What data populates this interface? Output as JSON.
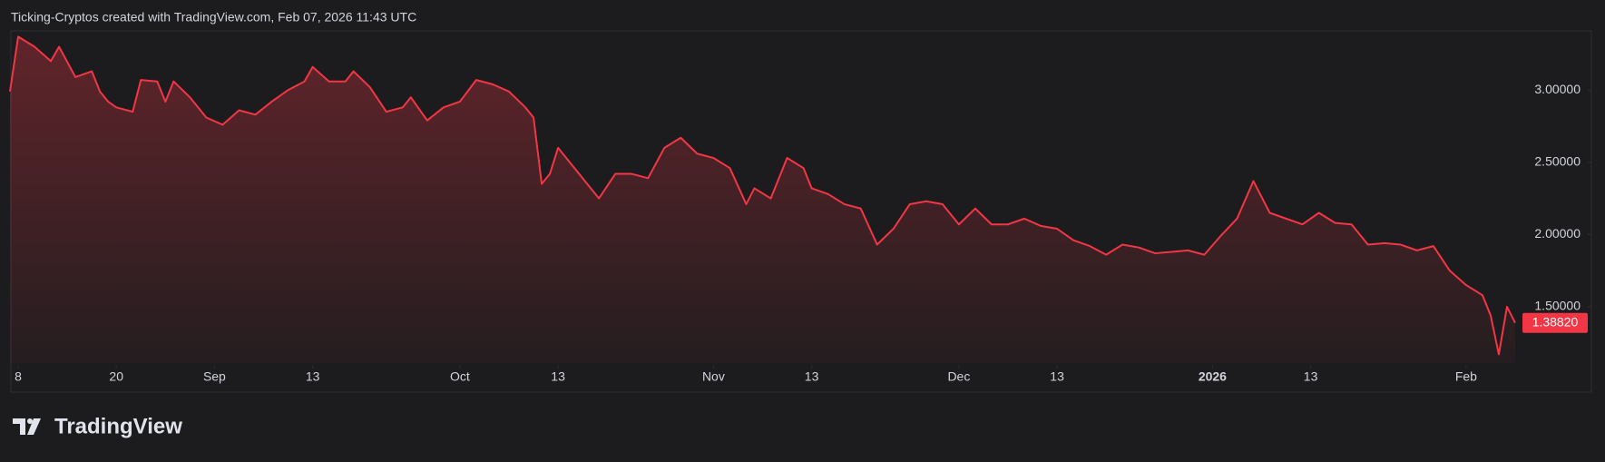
{
  "chart_data": {
    "type": "area",
    "title": "Ticking-Cryptos created with TradingView.com, Feb 07, 2026 11:43 UTC",
    "brand": "TradingView",
    "color": "#f23645",
    "x": [
      "2025-08-07",
      "2025-08-08",
      "2025-08-10",
      "2025-08-12",
      "2025-08-13",
      "2025-08-15",
      "2025-08-17",
      "2025-08-18",
      "2025-08-19",
      "2025-08-20",
      "2025-08-22",
      "2025-08-23",
      "2025-08-25",
      "2025-08-26",
      "2025-08-27",
      "2025-08-29",
      "2025-08-31",
      "2025-09-02",
      "2025-09-04",
      "2025-09-06",
      "2025-09-08",
      "2025-09-10",
      "2025-09-12",
      "2025-09-13",
      "2025-09-15",
      "2025-09-17",
      "2025-09-18",
      "2025-09-20",
      "2025-09-22",
      "2025-09-24",
      "2025-09-25",
      "2025-09-27",
      "2025-09-29",
      "2025-10-01",
      "2025-10-03",
      "2025-10-05",
      "2025-10-07",
      "2025-10-09",
      "2025-10-10",
      "2025-10-11",
      "2025-10-12",
      "2025-10-13",
      "2025-10-15",
      "2025-10-17",
      "2025-10-18",
      "2025-10-20",
      "2025-10-22",
      "2025-10-24",
      "2025-10-26",
      "2025-10-28",
      "2025-10-30",
      "2025-11-01",
      "2025-11-03",
      "2025-11-05",
      "2025-11-06",
      "2025-11-08",
      "2025-11-10",
      "2025-11-12",
      "2025-11-13",
      "2025-11-15",
      "2025-11-17",
      "2025-11-19",
      "2025-11-21",
      "2025-11-23",
      "2025-11-25",
      "2025-11-27",
      "2025-11-29",
      "2025-12-01",
      "2025-12-03",
      "2025-12-05",
      "2025-12-07",
      "2025-12-09",
      "2025-12-11",
      "2025-12-13",
      "2025-12-15",
      "2025-12-17",
      "2025-12-19",
      "2025-12-21",
      "2025-12-23",
      "2025-12-25",
      "2025-12-27",
      "2025-12-29",
      "2025-12-31",
      "2026-01-02",
      "2026-01-04",
      "2026-01-06",
      "2026-01-08",
      "2026-01-10",
      "2026-01-12",
      "2026-01-14",
      "2026-01-16",
      "2026-01-18",
      "2026-01-20",
      "2026-01-22",
      "2026-01-24",
      "2026-01-26",
      "2026-01-28",
      "2026-01-30",
      "2026-02-01",
      "2026-02-03",
      "2026-02-04",
      "2026-02-05",
      "2026-02-06",
      "2026-02-07"
    ],
    "values": [
      2.99,
      3.37,
      3.3,
      3.2,
      3.3,
      3.09,
      3.13,
      2.99,
      2.92,
      2.88,
      2.85,
      3.07,
      3.06,
      2.92,
      3.06,
      2.95,
      2.81,
      2.76,
      2.86,
      2.83,
      2.92,
      3.0,
      3.06,
      3.16,
      3.06,
      3.06,
      3.13,
      3.02,
      2.85,
      2.88,
      2.95,
      2.79,
      2.88,
      2.92,
      3.07,
      3.04,
      2.99,
      2.88,
      2.81,
      2.35,
      2.42,
      2.6,
      2.46,
      2.32,
      2.25,
      2.42,
      2.42,
      2.39,
      2.6,
      2.67,
      2.56,
      2.53,
      2.46,
      2.21,
      2.32,
      2.25,
      2.53,
      2.46,
      2.32,
      2.28,
      2.21,
      2.18,
      1.93,
      2.04,
      2.21,
      2.23,
      2.21,
      2.07,
      2.18,
      2.07,
      2.07,
      2.11,
      2.06,
      2.04,
      1.96,
      1.92,
      1.86,
      1.93,
      1.91,
      1.87,
      1.88,
      1.89,
      1.86,
      1.99,
      2.11,
      2.37,
      2.15,
      2.11,
      2.07,
      2.15,
      2.08,
      2.07,
      1.93,
      1.94,
      1.93,
      1.89,
      1.92,
      1.75,
      1.65,
      1.58,
      1.44,
      1.17,
      1.5,
      1.3882
    ],
    "price_label": {
      "value": 1.3882,
      "label": "1.38820"
    },
    "xlim": [
      "2025-08-07",
      "2026-02-07"
    ],
    "xticks": [
      {
        "value": "2025-08-08",
        "label": "8"
      },
      {
        "value": "2025-08-20",
        "label": "20"
      },
      {
        "value": "2025-09-01",
        "label": "Sep"
      },
      {
        "value": "2025-09-13",
        "label": "13"
      },
      {
        "value": "2025-10-01",
        "label": "Oct"
      },
      {
        "value": "2025-10-13",
        "label": "13"
      },
      {
        "value": "2025-11-01",
        "label": "Nov"
      },
      {
        "value": "2025-11-13",
        "label": "13"
      },
      {
        "value": "2025-12-01",
        "label": "Dec"
      },
      {
        "value": "2025-12-13",
        "label": "13"
      },
      {
        "value": "2026-01-01",
        "label": "2026"
      },
      {
        "value": "2026-01-13",
        "label": "13"
      },
      {
        "value": "2026-02-01",
        "label": "Feb"
      }
    ],
    "ylim": [
      1.11,
      3.41
    ],
    "yticks": [
      {
        "value": 1.5,
        "label": "1.50000"
      },
      {
        "value": 2,
        "label": "2.00000"
      },
      {
        "value": 2.5,
        "label": "2.50000"
      },
      {
        "value": 3,
        "label": "3.00000"
      }
    ],
    "grid": false
  }
}
